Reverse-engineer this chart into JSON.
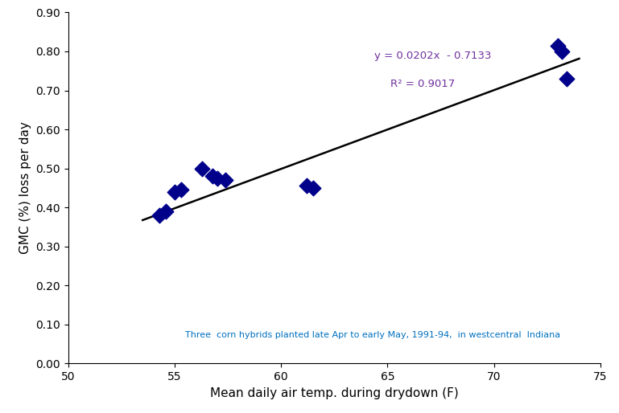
{
  "x_data": [
    54.3,
    54.6,
    55.0,
    55.3,
    56.3,
    56.8,
    57.0,
    57.4,
    61.2,
    61.5,
    73.0,
    73.2,
    73.4
  ],
  "y_data": [
    0.38,
    0.39,
    0.44,
    0.445,
    0.5,
    0.48,
    0.475,
    0.47,
    0.455,
    0.45,
    0.815,
    0.8,
    0.73
  ],
  "slope": 0.0202,
  "intercept": -0.7133,
  "r_squared": 0.9017,
  "equation_text": "y = 0.0202x  - 0.7133",
  "r2_text": "R² = 0.9017",
  "annotation_text": "Three  corn hybrids planted late Apr to early May, 1991-94,  in westcentral  Indiana",
  "equation_color": "#7030A0",
  "annotation_color": "#0070C0",
  "marker_color": "#00008B",
  "line_color": "#000000",
  "line_x_start": 53.5,
  "line_x_end": 74.0,
  "xlim": [
    50,
    75
  ],
  "ylim": [
    0.0,
    0.9
  ],
  "xticks": [
    50,
    55,
    60,
    65,
    70,
    75
  ],
  "yticks": [
    0.0,
    0.1,
    0.2,
    0.3,
    0.4,
    0.5,
    0.6,
    0.7,
    0.8,
    0.9
  ],
  "xlabel": "Mean daily air temp. during drydown (F)",
  "ylabel": "GMC (%) loss per day",
  "figsize": [
    7.69,
    5.14
  ],
  "dpi": 100
}
